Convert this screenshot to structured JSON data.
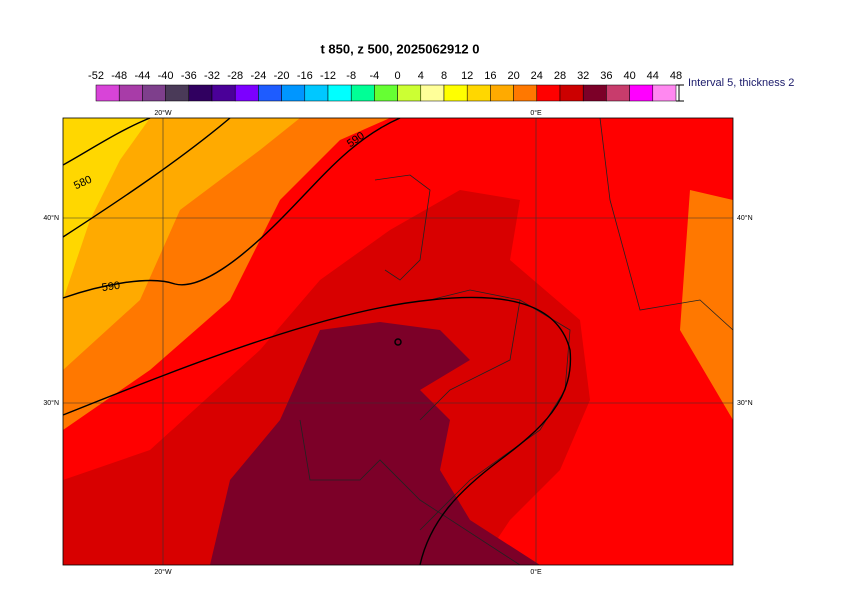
{
  "title": "t 850, z 500, 2025062912 0",
  "colorbar": {
    "labels": [
      -52,
      -48,
      -44,
      -40,
      -36,
      -32,
      -28,
      -24,
      -20,
      -16,
      -12,
      -8,
      -4,
      0,
      4,
      8,
      12,
      16,
      20,
      24,
      28,
      32,
      36,
      40,
      44,
      48
    ],
    "colors": [
      "#d844d8",
      "#a83ca8",
      "#7e3f8c",
      "#4a3a58",
      "#300060",
      "#4a0098",
      "#7c00ff",
      "#1e5cff",
      "#0096ff",
      "#00c8ff",
      "#00ffff",
      "#00ff96",
      "#66ff33",
      "#ccff33",
      "#ffff99",
      "#ffff00",
      "#ffd700",
      "#ffaa00",
      "#ff7800",
      "#ff0000",
      "#cc0000",
      "#7c0028",
      "#c83c6c",
      "#ff00ff",
      "#ff88f0"
    ]
  },
  "note": "Interval 5, thickness 2",
  "axes": {
    "top": [
      "20°W",
      "0°E"
    ],
    "bottom": [
      "20°W",
      "0°E"
    ],
    "left": [
      "40°N",
      "30°N"
    ],
    "right": [
      "40°N",
      "30°N"
    ]
  },
  "contour_labels": [
    580,
    590,
    590
  ]
}
